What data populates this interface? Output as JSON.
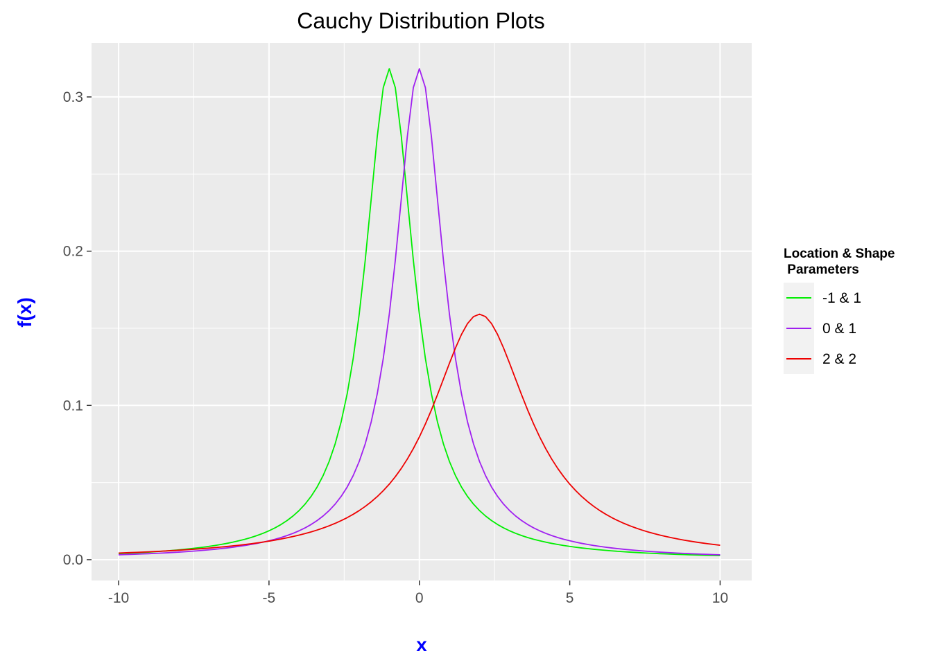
{
  "chart_data": {
    "type": "line",
    "title": "Cauchy Distribution Plots",
    "xlabel": "x",
    "ylabel": "f(x)",
    "xlim": [
      -10.9,
      11.05
    ],
    "ylim": [
      -0.0135,
      0.335
    ],
    "x_ticks": [
      -10,
      -5,
      0,
      5,
      10
    ],
    "x_tick_labels": [
      "-10",
      "-5",
      "0",
      "5",
      "10"
    ],
    "y_ticks": [
      0.0,
      0.1,
      0.2,
      0.3
    ],
    "y_tick_labels": [
      "0.0",
      "0.1",
      "0.2",
      "0.3"
    ],
    "grid": true,
    "legend_position": "right",
    "legend": {
      "title_line1": "Location & Shape",
      "title_line2": " Parameters"
    },
    "x_range": [
      -10,
      10
    ],
    "series": [
      {
        "name": "-1 & 1",
        "location": -1,
        "scale": 1,
        "color": "#00ee00"
      },
      {
        "name": "0 & 1",
        "location": 0,
        "scale": 1,
        "color": "#a020f0"
      },
      {
        "name": "2 & 2",
        "location": 2,
        "scale": 2,
        "color": "#ee0000"
      }
    ]
  },
  "colors": {
    "panel": "#ebebeb",
    "grid": "#ffffff",
    "axis_title": "#0000ff",
    "legend_key_bg": "#f2f2f2"
  }
}
